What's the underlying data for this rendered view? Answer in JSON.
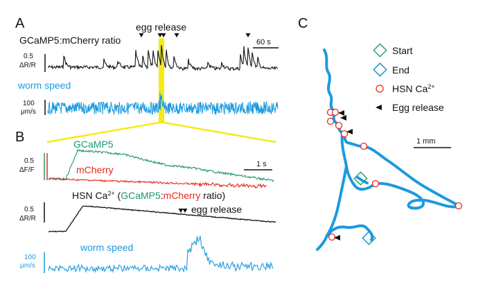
{
  "panels": {
    "A": {
      "letter": "A",
      "egg_release_label": "egg release",
      "ratio_title": "GCaMP5:mCherry ratio",
      "scale_time": "60 s",
      "ratio_scale_value": "0.5",
      "ratio_scale_unit": "ΔR/R",
      "speed_title": "worm speed",
      "speed_scale_value": "100",
      "speed_scale_unit": "μm/s"
    },
    "B": {
      "letter": "B",
      "gcamp_label": "GCaMP5",
      "mcherry_label": "mCherry",
      "scale_time": "1 s",
      "df_scale_value": "0.5",
      "df_scale_unit": "ΔF/F",
      "hsn_prefix": "HSN Ca",
      "hsn_sup": "2+",
      "hsn_open": " (",
      "hsn_gcamp": "GCaMP5",
      "hsn_colon": ":",
      "hsn_mcherry": "mCherry",
      "hsn_close": " ratio)",
      "egg_release_label": "egg release",
      "dr_scale_value": "0.5",
      "dr_scale_unit": "ΔR/R",
      "speed_label": "worm speed",
      "speed_scale_value": "100",
      "speed_scale_unit": "μm/s"
    },
    "C": {
      "letter": "C",
      "legend": {
        "start": "Start",
        "end": "End",
        "hsn": "HSN Ca",
        "hsn_sup": "2+",
        "egg": "Egg release"
      },
      "scale_label": "1 mm"
    }
  },
  "colors": {
    "gcamp": "#1a9a6a",
    "mcherry": "#e8281e",
    "speed": "#1b9ae0",
    "trace": "#111111",
    "highlight": "#f5ea14",
    "start": "#2aa36a",
    "end": "#1f8fc8",
    "hsn_circle": "#e8281e"
  }
}
